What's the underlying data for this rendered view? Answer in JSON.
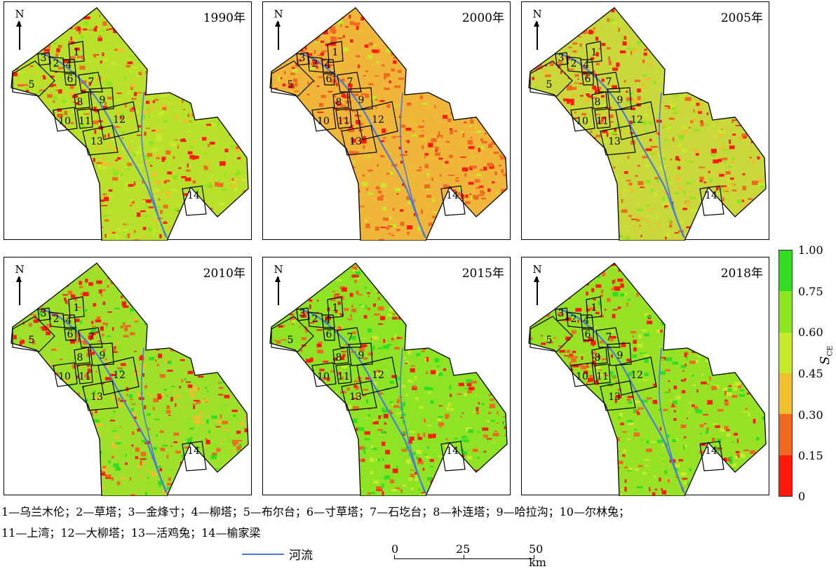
{
  "panels": [
    {
      "year": "1990年"
    },
    {
      "year": "2000年"
    },
    {
      "year": "2005年"
    },
    {
      "year": "2010年"
    },
    {
      "year": "2015年"
    },
    {
      "year": "2018年"
    }
  ],
  "north_label": "N",
  "region_numbers": [
    "1",
    "2",
    "3",
    "4",
    "5",
    "6",
    "7",
    "8",
    "9",
    "10",
    "11",
    "12",
    "13",
    "14"
  ],
  "legend": {
    "variable": "S",
    "variable_subscript": "CE",
    "ticks": [
      "1.00",
      "0.75",
      "0.60",
      "0.45",
      "0.30",
      "0.15",
      "0"
    ],
    "colors": [
      "#33dd22",
      "#8ae61e",
      "#c7ea2a",
      "#efbf2e",
      "#f06a22",
      "#ff1a0a"
    ]
  },
  "caption": {
    "line1": "1—乌兰木伦；2—草塔；3—金烽寸；4—柳塔；5—布尔台；6—寸草塔；7—石圪台；8—补连塔；9—哈拉沟；10—尔林兔；",
    "line2": "11—上湾；12—大柳塔；13—活鸡兔；14—榆家梁"
  },
  "river_legend": {
    "label": "河流",
    "color": "#4a7bd8"
  },
  "scale_bar": {
    "ticks": [
      "0",
      "25",
      "50 km"
    ]
  }
}
